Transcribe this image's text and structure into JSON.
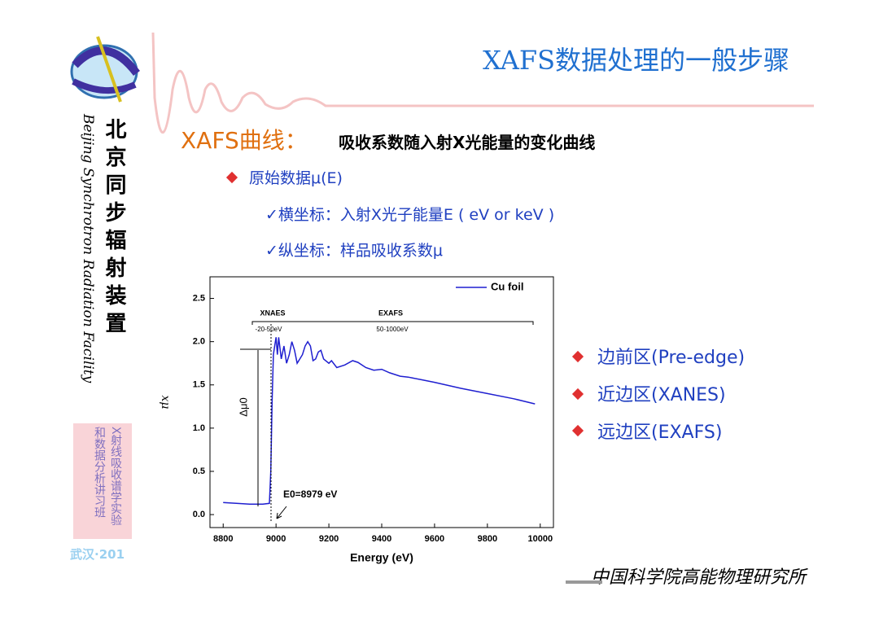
{
  "slide": {
    "title": "XAFS数据处理的一般步骤",
    "heading": "XAFS曲线：",
    "heading_desc": "吸收系数随入射X光能量的变化曲线",
    "bullet": "原始数据μ(E)",
    "sub_bullets": [
      "✓横坐标：入射X光子能量E ( eV or keV )",
      "✓纵坐标：样品吸收系数μ"
    ],
    "regions": [
      "边前区(Pre-edge)",
      "近边区(XANES)",
      "远边区(EXAFS)"
    ],
    "sidebar_cn": "北京同步辐射装置",
    "sidebar_en": "Beijing Synchrotron Radiation Facility",
    "course": [
      "X射线吸收谱学实验",
      "和数据分析讲习班"
    ],
    "location": "武汉·201",
    "footer": "中国科学院高能物理研究所"
  },
  "chart_data": {
    "type": "line",
    "x": [
      8800,
      8850,
      8900,
      8950,
      8975,
      8980,
      8985,
      8990,
      8995,
      9000,
      9005,
      9010,
      9020,
      9030,
      9040,
      9050,
      9060,
      9070,
      9080,
      9090,
      9100,
      9110,
      9120,
      9130,
      9140,
      9150,
      9160,
      9170,
      9180,
      9200,
      9210,
      9230,
      9260,
      9290,
      9310,
      9340,
      9370,
      9400,
      9430,
      9470,
      9500,
      9550,
      9600,
      9700,
      9800,
      9900,
      9980
    ],
    "series": [
      {
        "name": "Cu foil",
        "color": "#1f1fd0",
        "values": [
          0.14,
          0.13,
          0.12,
          0.12,
          0.13,
          0.5,
          1.3,
          1.85,
          1.95,
          2.05,
          1.85,
          2.05,
          1.8,
          1.95,
          1.75,
          1.85,
          2.0,
          1.9,
          1.75,
          1.8,
          1.85,
          1.95,
          2.0,
          1.95,
          1.78,
          1.8,
          1.88,
          1.9,
          1.8,
          1.75,
          1.78,
          1.7,
          1.73,
          1.78,
          1.76,
          1.7,
          1.67,
          1.68,
          1.64,
          1.6,
          1.59,
          1.56,
          1.53,
          1.46,
          1.4,
          1.34,
          1.28
        ]
      }
    ],
    "xlabel": "Energy (eV)",
    "ylabel": "xμ",
    "xlim": [
      8750,
      10050
    ],
    "ylim": [
      -0.15,
      2.75
    ],
    "xticks": [
      8800,
      9000,
      9200,
      9400,
      9600,
      9800,
      10000
    ],
    "yticks": [
      {
        "value": 0,
        "label": "0.0"
      },
      0.5,
      {
        "value": 1,
        "label": "1.0"
      },
      1.5,
      {
        "value": 2,
        "label": "2.0"
      },
      2.5
    ],
    "annotations": [
      "XNAES",
      "EXAFS",
      "-20-50eV",
      "50-1000eV",
      "Δμ0",
      "E0=8979 eV"
    ],
    "legend": "upper right"
  }
}
